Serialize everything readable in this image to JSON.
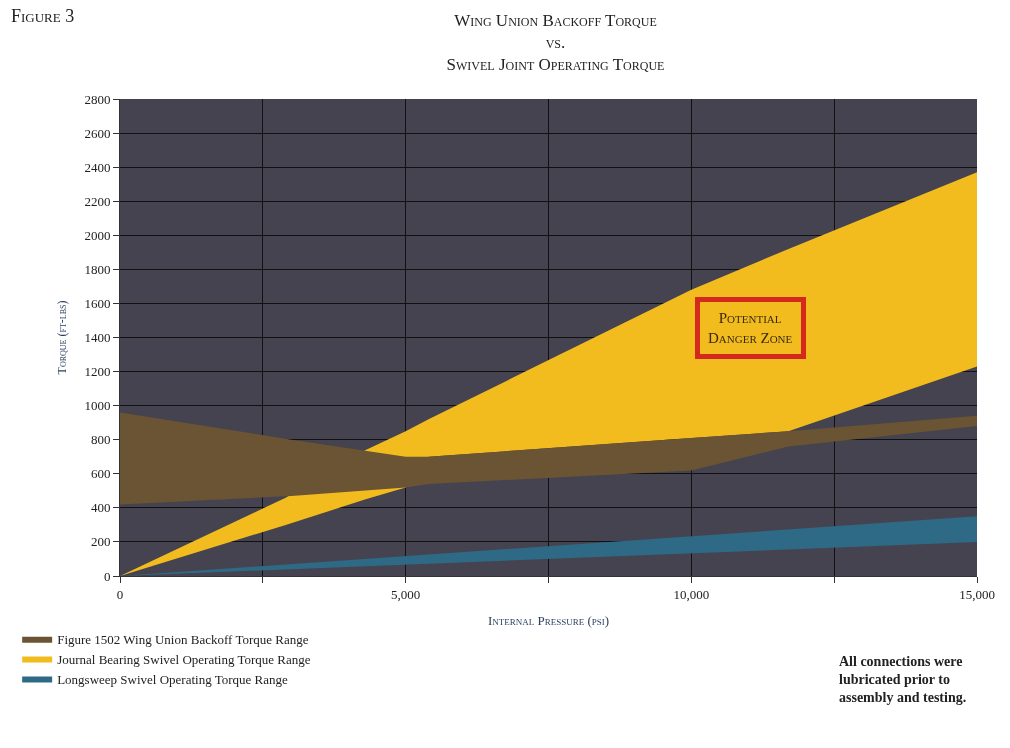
{
  "chart_data": {
    "type": "line",
    "title": "Wing Union Backoff Torque\nvs.\nSwivel Joint Operating Torque",
    "xlabel": "Internal Pressure (psi)",
    "ylabel": "Torque (ft-lbs)",
    "series": [
      {
        "name": "Figure 1502 Wing Union Backoff Torque Range",
        "color": "#6b5433",
        "x": [
          0,
          3000,
          5000,
          5400,
          10000,
          11700,
          15000
        ],
        "values": [
          null,
          null,
          null,
          null,
          null,
          null,
          null
        ],
        "upper": [
          960,
          800,
          700,
          700,
          810,
          850,
          940
        ],
        "lower": [
          420,
          470,
          520,
          540,
          620,
          760,
          880
        ]
      },
      {
        "name": "Journal Bearing Swivel Operating Torque Range",
        "color": "#f2bc1e",
        "x": [
          0,
          2900,
          4300,
          5000,
          5400,
          10000,
          11700,
          15000
        ],
        "values": [
          null,
          null,
          null,
          null,
          null,
          null,
          null,
          null
        ],
        "upper": [
          0,
          460,
          740,
          850,
          920,
          1680,
          1920,
          2370
        ],
        "lower": [
          0,
          300,
          450,
          520,
          700,
          810,
          850,
          1230
        ]
      },
      {
        "name": "Longsweep Swivel Operating Torque Range",
        "color": "#2e6a86",
        "x": [
          0,
          15000
        ],
        "values": [
          null,
          null
        ],
        "upper": [
          0,
          350
        ],
        "lower": [
          0,
          200
        ]
      }
    ],
    "xlim": [
      0,
      15000
    ],
    "xticks": [
      0,
      {
        "value": 2500,
        "label": null
      },
      {
        "value": 5000,
        "label": "5,000"
      },
      {
        "value": 7500,
        "label": null
      },
      {
        "value": 10000,
        "label": "10,000"
      },
      {
        "value": 12500,
        "label": null
      },
      {
        "value": 15000,
        "label": "15,000"
      }
    ],
    "ylim": [
      0,
      2800
    ],
    "yticks": [
      0,
      200,
      400,
      600,
      800,
      1000,
      1200,
      1400,
      1600,
      1800,
      2000,
      2200,
      2400,
      2600,
      2800
    ],
    "grid": true,
    "legend": "bottom left",
    "annotations": [
      "Figure 3",
      "Potential\nDanger Zone",
      "All connections were\nlubricated prior to\nassembly and testing."
    ]
  }
}
